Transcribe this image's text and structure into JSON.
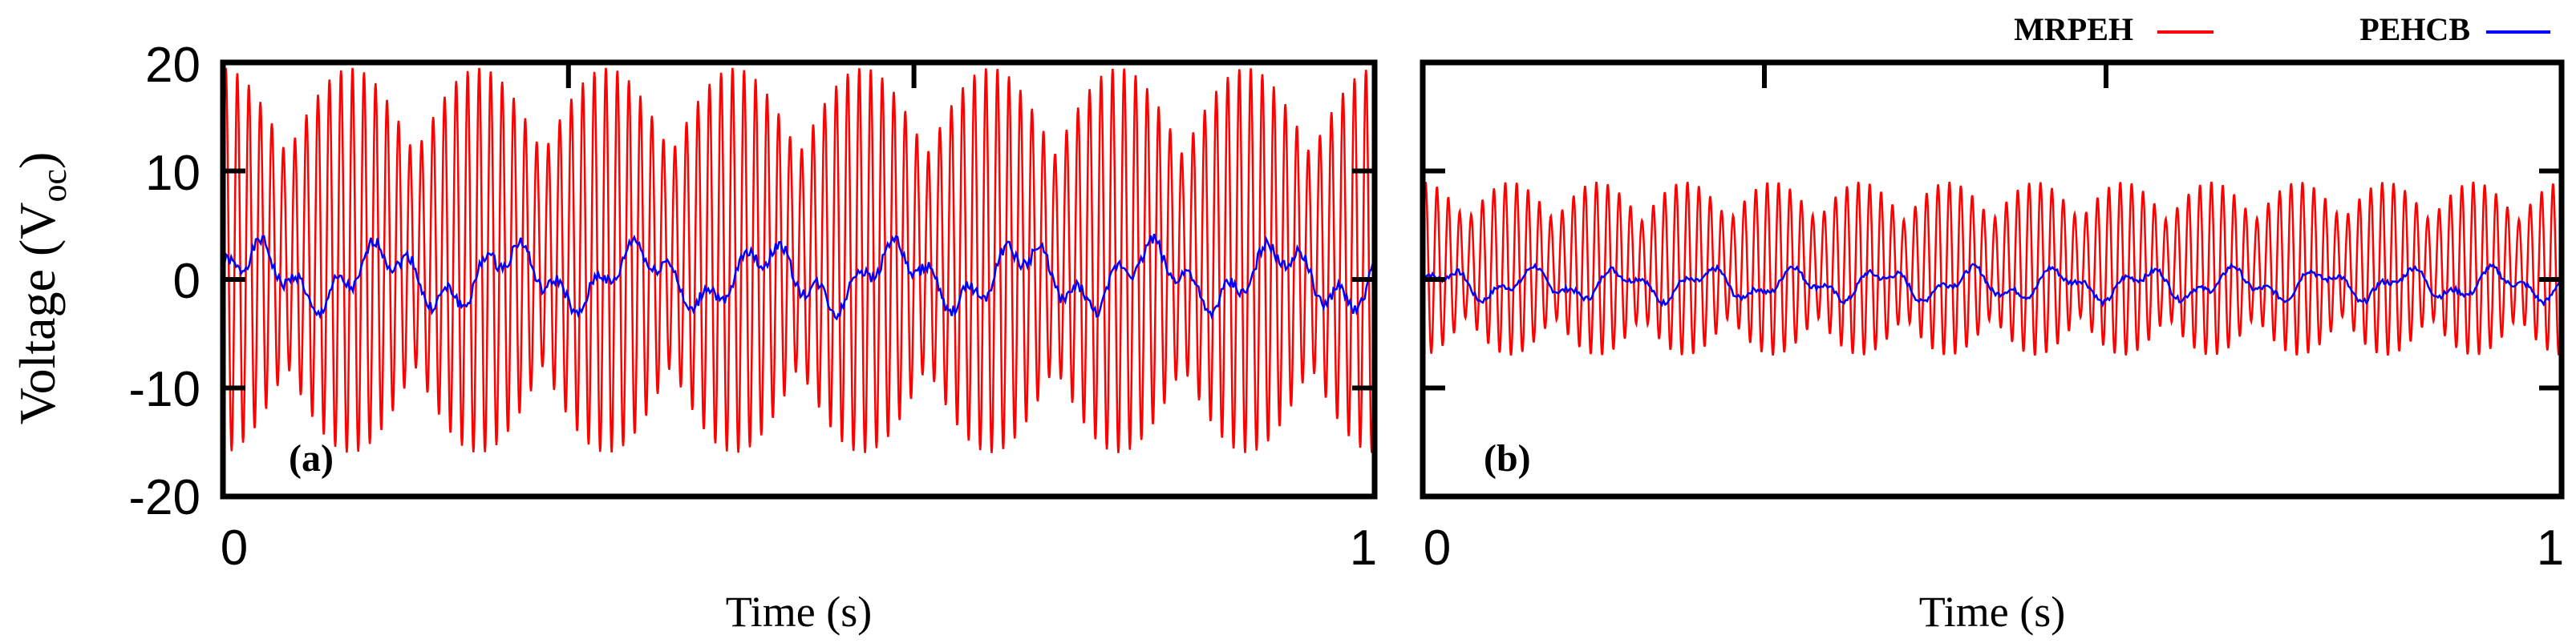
{
  "figure": {
    "y_label_main": "Voltage (",
    "y_label_symbol": "V",
    "y_label_subscript": "oc",
    "y_label_close": ")"
  },
  "legend": [
    {
      "name": "MRPEH",
      "color": "#ff0000"
    },
    {
      "name": "PEHCB",
      "color": "#0000ff"
    }
  ],
  "chart_data": [
    {
      "type": "line",
      "panel_label": "(a)",
      "xlabel": "Time (s)",
      "xlim": [
        0,
        1
      ],
      "ylim": [
        -20,
        20
      ],
      "x_ticks": [
        "0",
        "1"
      ],
      "y_ticks": [
        "20",
        "10",
        "0",
        "-10",
        "-20"
      ],
      "grid": false,
      "series": [
        {
          "name": "MRPEH",
          "color": "#ff0000",
          "envelope_max": 19.5,
          "envelope_min": -16,
          "oscillation_cycles": 100,
          "beat_cycles": 9
        },
        {
          "name": "PEHCB",
          "color": "#0000ff",
          "range": [
            -5,
            5.5
          ]
        }
      ]
    },
    {
      "type": "line",
      "panel_label": "(b)",
      "xlabel": "Time (s)",
      "xlim": [
        0,
        1
      ],
      "ylim": [
        -20,
        20
      ],
      "x_ticks": [
        "0",
        "1"
      ],
      "y_ticks": [],
      "grid": false,
      "series": [
        {
          "name": "MRPEH",
          "color": "#ff0000",
          "envelope_max": 9,
          "envelope_min": -7,
          "oscillation_cycles": 100,
          "beat_cycles": 13
        },
        {
          "name": "PEHCB",
          "color": "#0000ff",
          "range": [
            -3,
            2
          ]
        }
      ]
    }
  ]
}
